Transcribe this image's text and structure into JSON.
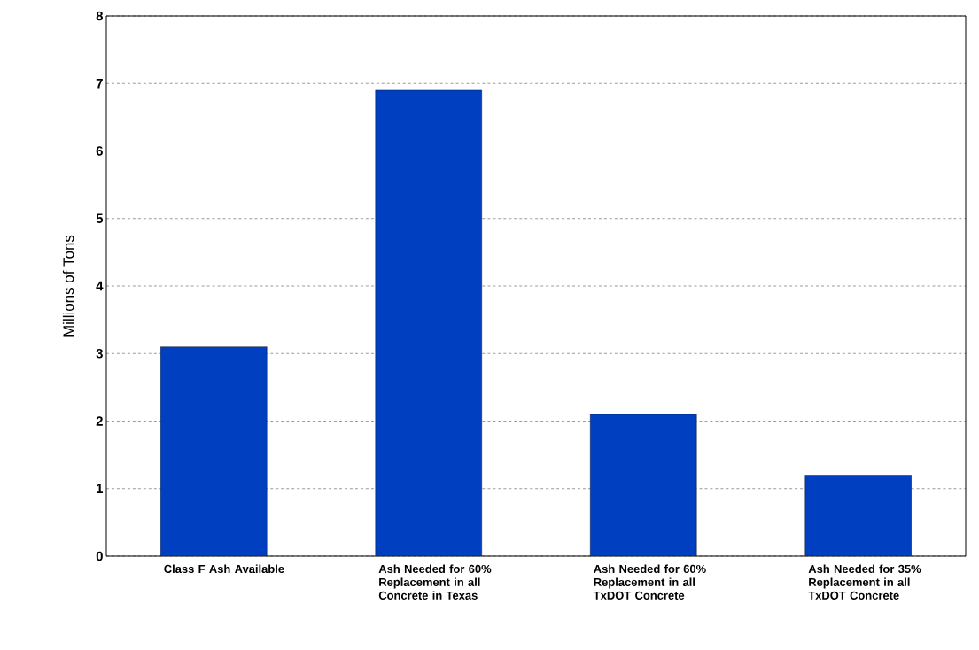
{
  "chart_data": {
    "type": "bar",
    "ylabel": "Millions of Tons",
    "categories": [
      "Class F Ash Available",
      "Ash Needed for 60% Replacement in all Concrete in Texas",
      "Ash Needed for 60% Replacement in all TxDOT Concrete",
      "Ash Needed for 35% Replacement in all TxDOT Concrete"
    ],
    "values": [
      3.1,
      6.9,
      2.1,
      1.2
    ],
    "color": "#0040c0",
    "ylim": [
      0,
      8
    ],
    "yticks": [
      0,
      1,
      2,
      3,
      4,
      5,
      6,
      7,
      8
    ],
    "grid": "y"
  }
}
